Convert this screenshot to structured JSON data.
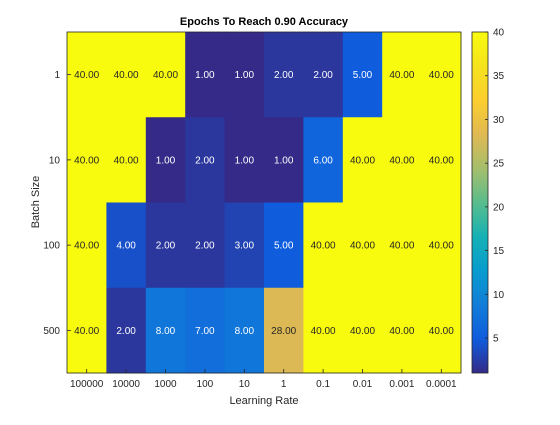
{
  "chart_data": {
    "type": "heatmap",
    "title": "Epochs To Reach 0.90 Accuracy",
    "xlabel": "Learning Rate",
    "ylabel": "Batch Size",
    "x_categories": [
      "100000",
      "10000",
      "1000",
      "100",
      "10",
      "1",
      "0.1",
      "0.01",
      "0.001",
      "0.0001"
    ],
    "y_categories": [
      "1",
      "10",
      "100",
      "500"
    ],
    "values": [
      [
        40,
        40,
        40,
        1,
        1,
        2,
        2,
        5,
        40,
        40
      ],
      [
        40,
        40,
        1,
        2,
        1,
        1,
        6,
        40,
        40,
        40
      ],
      [
        40,
        4,
        2,
        2,
        3,
        5,
        40,
        40,
        40,
        40
      ],
      [
        40,
        2,
        8,
        7,
        8,
        28,
        40,
        40,
        40,
        40
      ]
    ],
    "value_labels": [
      [
        "40.00",
        "40.00",
        "40.00",
        "1.00",
        "1.00",
        "2.00",
        "2.00",
        "5.00",
        "40.00",
        "40.00"
      ],
      [
        "40.00",
        "40.00",
        "1.00",
        "2.00",
        "1.00",
        "1.00",
        "6.00",
        "40.00",
        "40.00",
        "40.00"
      ],
      [
        "40.00",
        "4.00",
        "2.00",
        "2.00",
        "3.00",
        "5.00",
        "40.00",
        "40.00",
        "40.00",
        "40.00"
      ],
      [
        "40.00",
        "2.00",
        "8.00",
        "7.00",
        "8.00",
        "28.00",
        "40.00",
        "40.00",
        "40.00",
        "40.00"
      ]
    ],
    "colorbar": {
      "min": 1,
      "max": 40,
      "ticks": [
        5,
        10,
        15,
        20,
        25,
        30,
        35,
        40
      ],
      "colormap": "parula"
    },
    "grid": false
  }
}
